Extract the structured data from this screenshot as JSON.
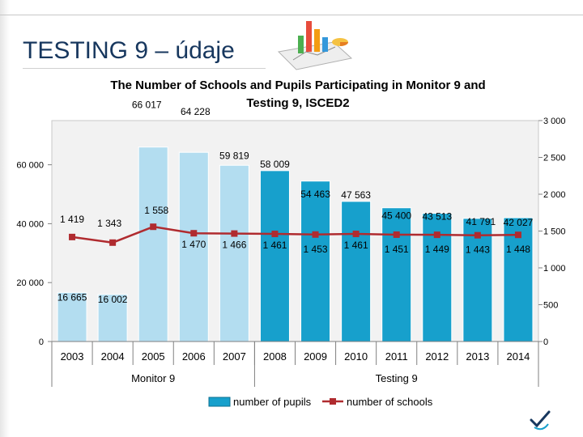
{
  "slide": {
    "title": "TESTING 9 – údaje"
  },
  "chart_data": {
    "type": "bar",
    "title": "The Number of Schools and Pupils Participating in Monitor 9 and Testing 9, ISCED2",
    "categories": [
      "2003",
      "2004",
      "2005",
      "2006",
      "2007",
      "2008",
      "2009",
      "2010",
      "2011",
      "2012",
      "2013",
      "2014"
    ],
    "groups": [
      {
        "label": "Monitor 9",
        "span": [
          0,
          4
        ]
      },
      {
        "label": "Testing 9",
        "span": [
          5,
          11
        ]
      }
    ],
    "series": [
      {
        "name": "number of pupils",
        "type": "bar",
        "axis": "left",
        "color": "#b3ddf0",
        "highlight_color": "#17a0cc",
        "values": [
          16665,
          16002,
          66017,
          64228,
          59819,
          58009,
          54463,
          47563,
          45400,
          43513,
          41791,
          42027
        ],
        "labels": [
          "16 665",
          "16 002",
          "66 017",
          "64 228",
          "59 819",
          "58 009",
          "54 463",
          "47 563",
          "45 400",
          "43 513",
          "41 791",
          "42 027"
        ],
        "highlighted": [
          false,
          false,
          false,
          false,
          false,
          true,
          true,
          true,
          true,
          true,
          true,
          true
        ]
      },
      {
        "name": "number of schools",
        "type": "line",
        "axis": "right",
        "color": "#b02b2f",
        "values": [
          1419,
          1343,
          1558,
          1470,
          1466,
          1461,
          1453,
          1461,
          1451,
          1449,
          1443,
          1448
        ],
        "labels": [
          "1 419",
          "1 343",
          "1 558",
          "1 470",
          "1 466",
          "1 461",
          "1 453",
          "1 461",
          "1 451",
          "1 449",
          "1 443",
          "1 448"
        ]
      }
    ],
    "y_left": {
      "lim": [
        0,
        75000
      ],
      "ticks": [
        0,
        20000,
        40000,
        60000
      ],
      "tick_labels": [
        "0",
        "20 000",
        "40 000",
        "60 000"
      ]
    },
    "y_right": {
      "lim": [
        0,
        3000
      ],
      "ticks": [
        0,
        500,
        1000,
        1500,
        2000,
        2500,
        3000
      ],
      "tick_labels": [
        "0",
        "500",
        "1 000",
        "1 500",
        "2 000",
        "2 500",
        "3 000"
      ]
    },
    "legend": {
      "position": "bottom"
    },
    "grid": false
  }
}
